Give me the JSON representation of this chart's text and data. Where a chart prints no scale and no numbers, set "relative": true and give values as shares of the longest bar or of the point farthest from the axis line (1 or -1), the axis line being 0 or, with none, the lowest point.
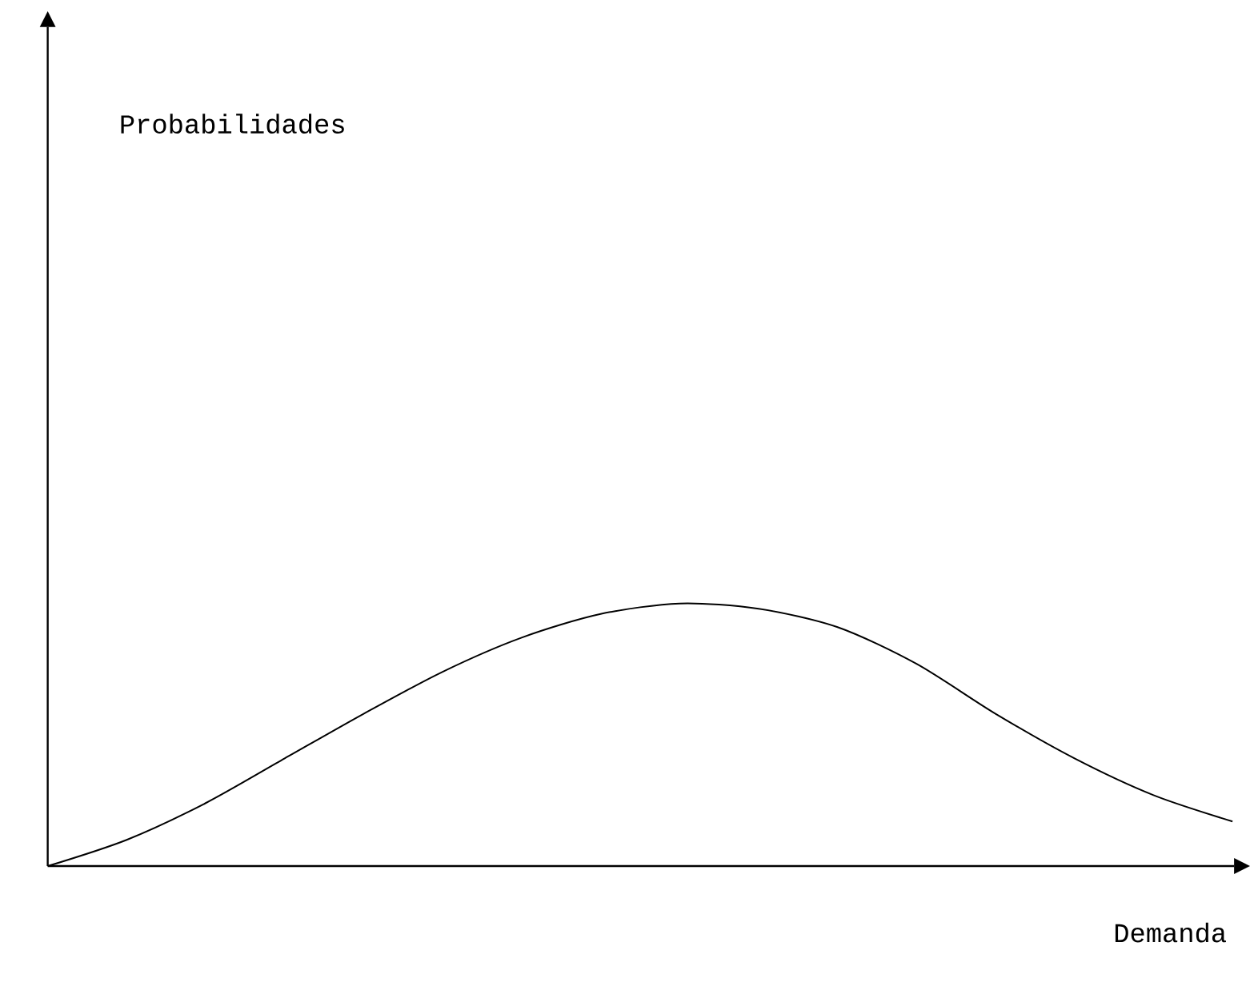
{
  "chart_data": {
    "type": "line",
    "relative": true,
    "xlabel": "Demanda",
    "annotations": [
      "Probabilidades"
    ],
    "categories": [
      null,
      null,
      null,
      null,
      null,
      null,
      null,
      null,
      null,
      null,
      null,
      null,
      null,
      null,
      null,
      null
    ],
    "series": [
      {
        "color": "#000000",
        "line_style": "solid",
        "values": [
          0,
          0.1,
          0.24,
          0.41,
          0.58,
          0.74,
          0.87,
          0.96,
          1,
          0.98,
          0.91,
          0.77,
          0.58,
          0.41,
          0.27,
          0.17
        ]
      }
    ]
  }
}
